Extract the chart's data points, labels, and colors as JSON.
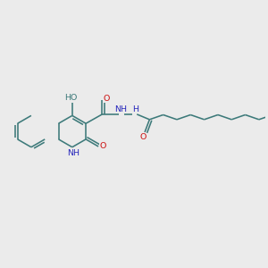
{
  "bg_color": "#ebebeb",
  "bond_color": "#3d7a7a",
  "n_color": "#2626bb",
  "o_color": "#cc1111",
  "font_size": 6.8,
  "bond_width": 1.15,
  "fig_size": [
    3.0,
    3.0
  ],
  "dpi": 100,
  "xlim": [
    0,
    10
  ],
  "ylim": [
    0,
    10
  ]
}
